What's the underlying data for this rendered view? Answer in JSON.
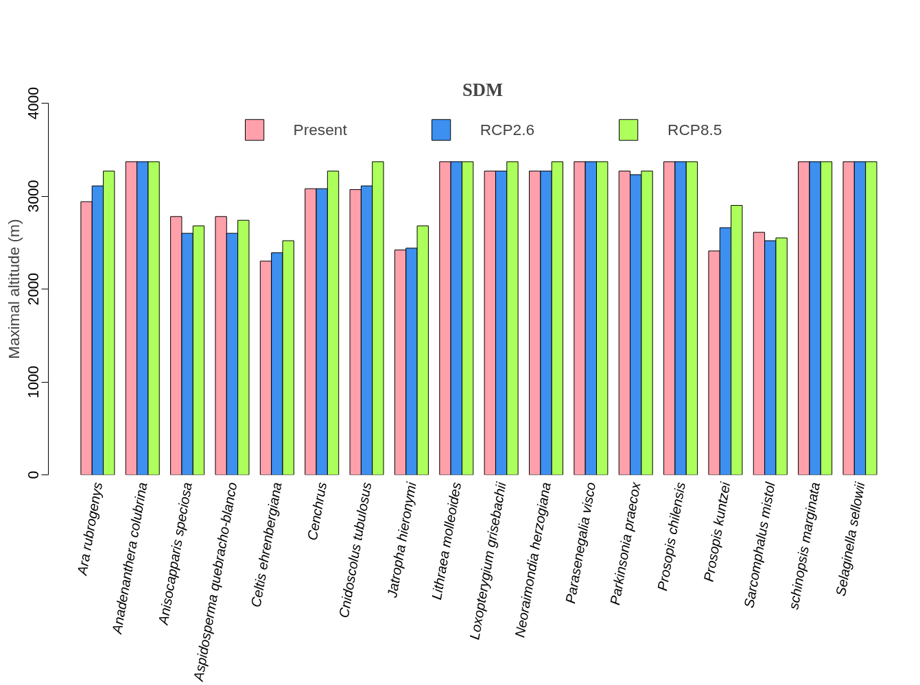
{
  "chart_data": {
    "type": "bar",
    "title": "SDM",
    "ylabel": "Maximal altitude (m)",
    "categories": [
      "Ara rubrogenys",
      "Anadenanthera colubrina",
      "Anisocapparis speciosa",
      "Aspidosperma quebracho-blanco",
      "Celtis ehrenbergiana",
      "Cenchrus",
      "Cnidoscolus tubulosus",
      "Jatropha hieronymi",
      "Lithraea molleoides",
      "Loxopterygium grisebachii",
      "Neoraimondia herzogiana",
      "Parasenegalia visco",
      "Parkinsonia praecox",
      "Prosopis chilensis",
      "Prosopis kuntzei",
      "Sarcomphalus mistol",
      "schinopsis marginata",
      "Selaginella sellowii"
    ],
    "series": [
      {
        "name": "Present",
        "color": "#ffa0ab",
        "values": [
          2940,
          3370,
          2780,
          2780,
          2300,
          3080,
          3070,
          2420,
          3370,
          3270,
          3270,
          3370,
          3270,
          3370,
          2410,
          2610,
          3370,
          3370
        ]
      },
      {
        "name": "RCP2.6",
        "color": "#3d8ff0",
        "values": [
          3110,
          3370,
          2600,
          2600,
          2390,
          3080,
          3110,
          2440,
          3370,
          3270,
          3270,
          3370,
          3230,
          3370,
          2660,
          2520,
          3370,
          3370
        ]
      },
      {
        "name": "RCP8.5",
        "color": "#adff5c",
        "values": [
          3270,
          3370,
          2680,
          2740,
          2520,
          3270,
          3370,
          2680,
          3370,
          3370,
          3370,
          3370,
          3270,
          3370,
          2900,
          2550,
          3370,
          3370
        ]
      }
    ],
    "ylim": [
      0,
      4000
    ],
    "yticks": [
      0,
      1000,
      2000,
      3000,
      4000
    ],
    "grid": false,
    "legend": "top"
  }
}
